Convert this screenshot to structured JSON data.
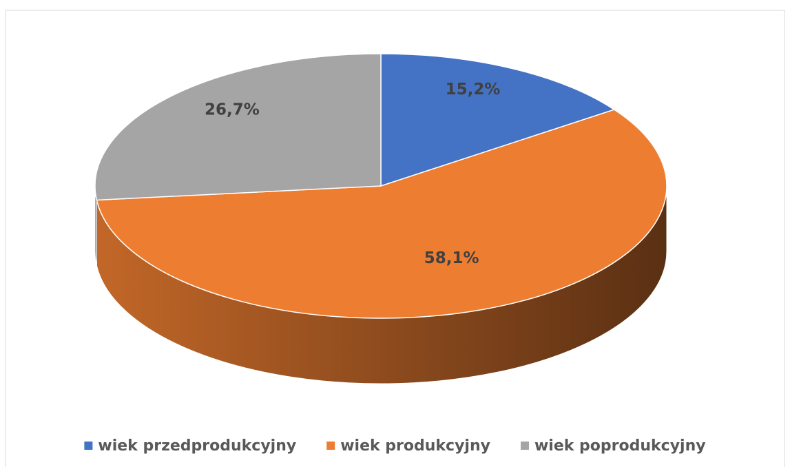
{
  "chart_data": {
    "type": "pie",
    "categories": [
      "wiek przedprodukcyjny",
      "wiek produkcyjny",
      "wiek poprodukcyjny"
    ],
    "values": [
      15.2,
      58.1,
      26.7
    ],
    "value_labels": [
      "15,2%",
      "58,1%",
      "26,7%"
    ],
    "colors": [
      "#4472c4",
      "#ed7d31",
      "#a5a5a5"
    ],
    "legend": "bottom"
  }
}
